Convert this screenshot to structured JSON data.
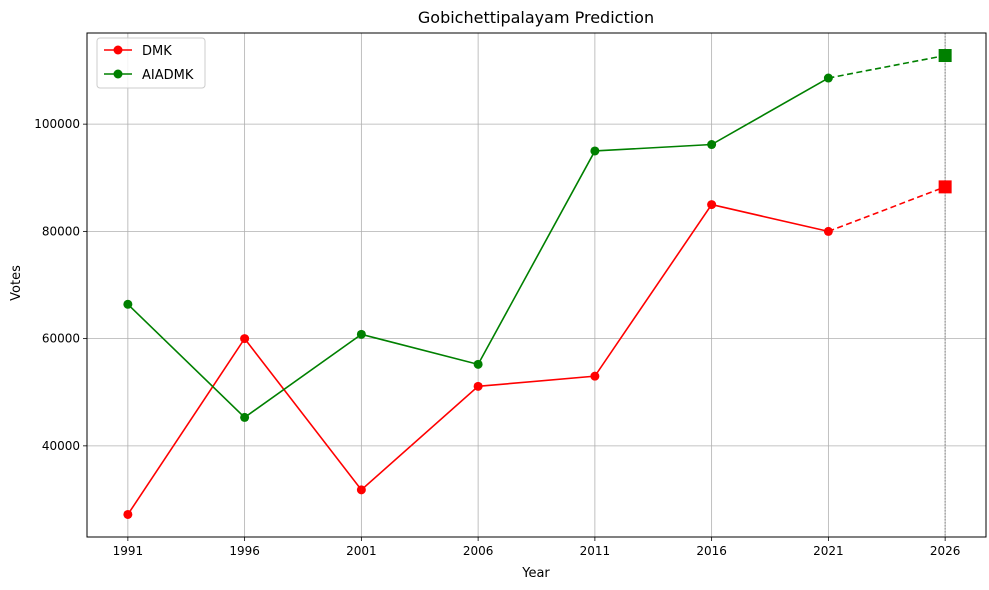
{
  "chart_data": {
    "type": "line",
    "title": "Gobichettipalayam Prediction",
    "xlabel": "Year",
    "ylabel": "Votes",
    "x": [
      1991,
      1996,
      2001,
      2006,
      2011,
      2016,
      2021
    ],
    "prediction_x": 2026,
    "xticks": [
      "1991",
      "1996",
      "2001",
      "2006",
      "2011",
      "2016",
      "2021",
      "2026"
    ],
    "yticks": [
      40000,
      60000,
      80000,
      100000
    ],
    "ytick_labels": [
      "40000",
      "60000",
      "80000",
      "100000"
    ],
    "xlim": [
      1989.25,
      2027.75
    ],
    "ylim": [
      23000,
      117000
    ],
    "grid": true,
    "legend_position": "upper-left",
    "series": [
      {
        "name": "DMK",
        "color": "#ff0000",
        "values": [
          27200,
          60000,
          31800,
          51100,
          53000,
          85000,
          80000
        ],
        "prediction": 88300
      },
      {
        "name": "AIADMK",
        "color": "#008000",
        "values": [
          66400,
          45300,
          60800,
          55200,
          95000,
          96200,
          108600
        ],
        "prediction": 112800
      }
    ]
  }
}
